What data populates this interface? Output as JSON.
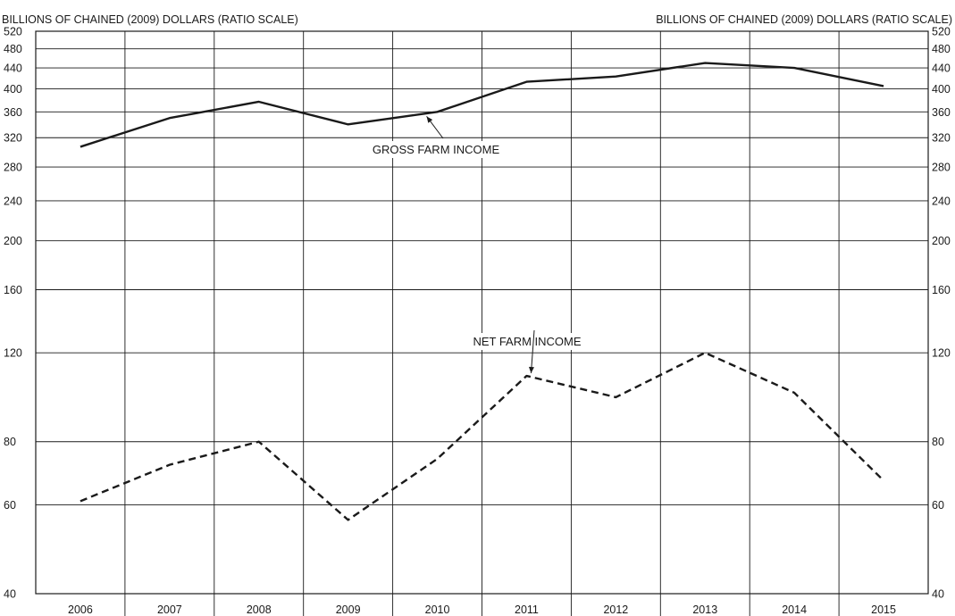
{
  "chart_data": {
    "type": "line",
    "left_axis_label": "BILLIONS OF CHAINED (2009) DOLLARS (RATIO SCALE)",
    "right_axis_label": "BILLIONS OF CHAINED (2009) DOLLARS (RATIO SCALE)",
    "y_scale": "log",
    "ylim": [
      40,
      520
    ],
    "y_ticks": [
      40,
      60,
      80,
      120,
      160,
      200,
      240,
      280,
      320,
      360,
      400,
      440,
      480,
      520
    ],
    "x": [
      "2006",
      "2007",
      "2008",
      "2009",
      "2010",
      "2011",
      "2012",
      "2013",
      "2014",
      "2015"
    ],
    "grid": true,
    "series": [
      {
        "name": "GROSS FARM INCOME",
        "style": "solid",
        "color": "#1a1a1a",
        "values": [
          307,
          350,
          377,
          340,
          360,
          413,
          423,
          450,
          440,
          405
        ]
      },
      {
        "name": "NET FARM INCOME",
        "style": "dashed",
        "color": "#1a1a1a",
        "values": [
          61,
          72,
          80,
          56,
          74,
          108,
          98,
          120,
          100,
          67
        ]
      }
    ],
    "annotations": [
      {
        "text": "GROSS FARM INCOME",
        "series": 0
      },
      {
        "text": "NET FARM INCOME",
        "series": 1
      }
    ]
  }
}
